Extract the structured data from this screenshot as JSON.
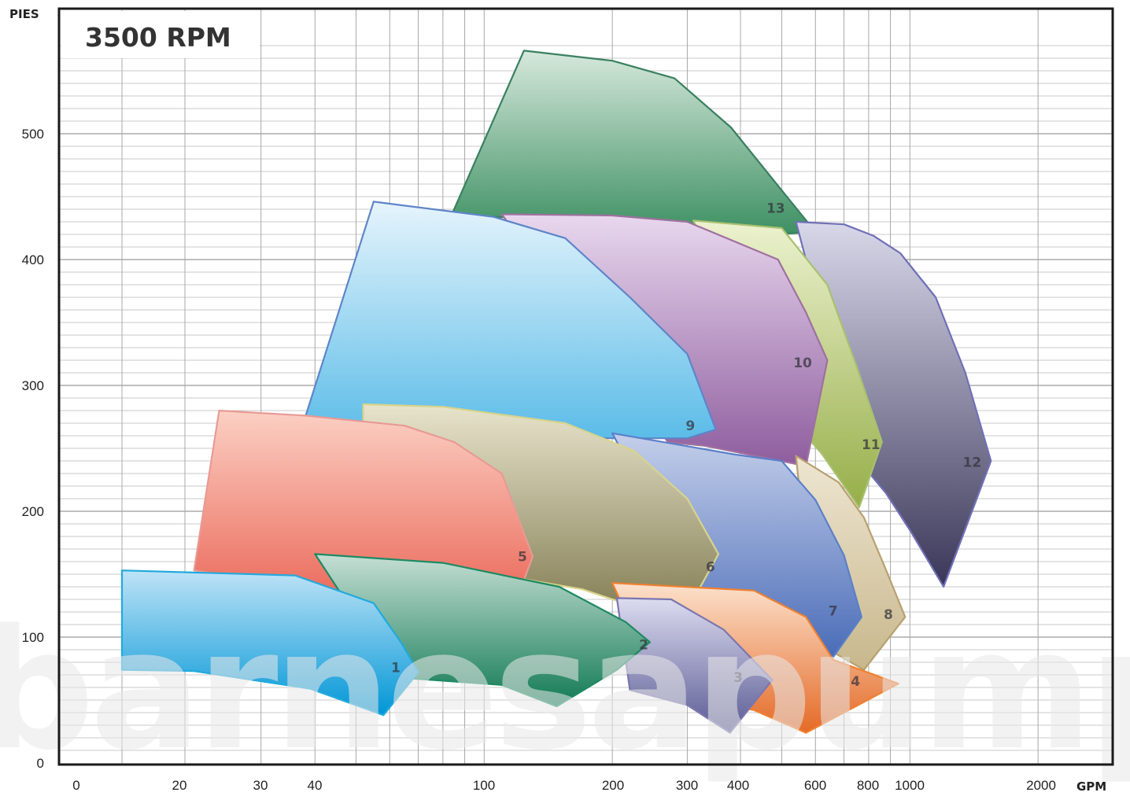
{
  "chart_data": {
    "type": "area",
    "title": "3500 RPM",
    "ylabel": "PIES",
    "xlabel": "GPM",
    "watermark": "barnesapumps",
    "ylim": [
      0,
      580
    ],
    "y_ticks": [
      0,
      100,
      200,
      300,
      400,
      500
    ],
    "x_tick_labels": [
      "0",
      "20",
      "30",
      "40",
      "100",
      "200",
      "300",
      "400",
      "600",
      "800",
      "1000",
      "2000"
    ],
    "grid": true,
    "series": [
      {
        "name": "1",
        "color": "#0096d6",
        "light": "#bfe3f7",
        "stroke": "#22aadd",
        "label_at": [
          62,
          76
        ],
        "outline": [
          [
            15,
            153
          ],
          [
            36,
            149
          ],
          [
            55,
            127
          ],
          [
            64,
            95
          ],
          [
            70,
            72
          ],
          [
            58,
            38
          ],
          [
            39,
            59
          ],
          [
            21,
            73
          ],
          [
            15,
            74
          ]
        ]
      },
      {
        "name": "2",
        "color": "#117a55",
        "light": "#c6dfd4",
        "stroke": "#1d8a63",
        "label_at": [
          237,
          94
        ],
        "outline": [
          [
            40,
            166
          ],
          [
            80,
            159
          ],
          [
            150,
            140
          ],
          [
            215,
            112
          ],
          [
            245,
            96
          ],
          [
            205,
            74
          ],
          [
            148,
            45
          ],
          [
            110,
            62
          ],
          [
            62,
            68
          ]
        ]
      },
      {
        "name": "3",
        "color": "#5a5a94",
        "light": "#dcdcf0",
        "stroke": "#7a76b0",
        "label_at": [
          395,
          68
        ],
        "outline": [
          [
            205,
            131
          ],
          [
            275,
            130
          ],
          [
            365,
            106
          ],
          [
            475,
            66
          ],
          [
            378,
            24
          ],
          [
            300,
            46
          ],
          [
            220,
            58
          ]
        ]
      },
      {
        "name": "4",
        "color": "#e46a27",
        "light": "#fce1cc",
        "stroke": "#f08030",
        "label_at": [
          745,
          65
        ],
        "outline": [
          [
            200,
            143
          ],
          [
            430,
            137
          ],
          [
            570,
            116
          ],
          [
            660,
            82
          ],
          [
            940,
            63
          ],
          [
            570,
            24
          ],
          [
            430,
            42
          ],
          [
            260,
            58
          ]
        ]
      },
      {
        "name": "5",
        "color": "#e8594a",
        "light": "#fbd0c3",
        "stroke": "#e89a95",
        "label_at": [
          123,
          164
        ],
        "outline": [
          [
            24,
            280
          ],
          [
            38,
            276
          ],
          [
            65,
            268
          ],
          [
            85,
            255
          ],
          [
            110,
            230
          ],
          [
            130,
            164
          ],
          [
            112,
            105
          ],
          [
            60,
            128
          ],
          [
            21,
            153
          ]
        ]
      },
      {
        "name": "6",
        "color": "#807a50",
        "light": "#e8e4cc",
        "stroke": "#d8d48a",
        "label_at": [
          340,
          156
        ],
        "outline": [
          [
            52,
            285
          ],
          [
            80,
            283
          ],
          [
            155,
            270
          ],
          [
            225,
            248
          ],
          [
            300,
            210
          ],
          [
            355,
            166
          ],
          [
            290,
            112
          ],
          [
            170,
            138
          ],
          [
            52,
            168
          ]
        ]
      },
      {
        "name": "7",
        "color": "#4a6cb8",
        "light": "#c4cfea",
        "stroke": "#5a80c8",
        "label_at": [
          660,
          121
        ],
        "outline": [
          [
            200,
            262
          ],
          [
            390,
            245
          ],
          [
            500,
            240
          ],
          [
            600,
            209
          ],
          [
            700,
            165
          ],
          [
            770,
            116
          ],
          [
            660,
            84
          ],
          [
            440,
            95
          ],
          [
            310,
            140
          ]
        ]
      },
      {
        "name": "8",
        "color": "#c8b78c",
        "light": "#eee6d2",
        "stroke": "#b8a070",
        "label_at": [
          890,
          118
        ],
        "outline": [
          [
            540,
            244
          ],
          [
            680,
            223
          ],
          [
            780,
            195
          ],
          [
            875,
            155
          ],
          [
            975,
            116
          ],
          [
            780,
            74
          ],
          [
            600,
            96
          ]
        ]
      },
      {
        "name": "9",
        "color": "#5bbce8",
        "light": "#e6f4fc",
        "stroke": "#5e85c8",
        "label_at": [
          305,
          268
        ],
        "outline": [
          [
            55,
            446
          ],
          [
            105,
            434
          ],
          [
            155,
            417
          ],
          [
            220,
            370
          ],
          [
            300,
            325
          ],
          [
            350,
            265
          ],
          [
            300,
            258
          ],
          [
            150,
            258
          ],
          [
            38,
            275
          ]
        ]
      },
      {
        "name": "10",
        "color": "#8e5c9e",
        "light": "#e8d8ee",
        "stroke": "#a070a0",
        "label_at": [
          560,
          318
        ],
        "outline": [
          [
            110,
            436
          ],
          [
            200,
            435
          ],
          [
            300,
            430
          ],
          [
            490,
            400
          ],
          [
            570,
            358
          ],
          [
            640,
            320
          ],
          [
            570,
            236
          ],
          [
            330,
            252
          ],
          [
            270,
            255
          ]
        ]
      },
      {
        "name": "11",
        "color": "#96ae48",
        "light": "#ecf2cf",
        "stroke": "#a8c070",
        "label_at": [
          810,
          253
        ],
        "outline": [
          [
            310,
            431
          ],
          [
            500,
            425
          ],
          [
            640,
            380
          ],
          [
            750,
            315
          ],
          [
            860,
            255
          ],
          [
            760,
            203
          ],
          [
            620,
            246
          ],
          [
            500,
            282
          ]
        ]
      },
      {
        "name": "12",
        "color": "#3a3658",
        "light": "#d8d8ea",
        "stroke": "#7070b8",
        "label_at": [
          1400,
          239
        ],
        "outline": [
          [
            540,
            430
          ],
          [
            700,
            428
          ],
          [
            820,
            419
          ],
          [
            950,
            405
          ],
          [
            1150,
            370
          ],
          [
            1350,
            310
          ],
          [
            1550,
            240
          ],
          [
            1200,
            140
          ],
          [
            1000,
            185
          ],
          [
            880,
            214
          ],
          [
            760,
            240
          ]
        ]
      },
      {
        "name": "13",
        "color": "#3d9062",
        "light": "#d6e8dc",
        "stroke": "#3a8060",
        "label_at": [
          484,
          441
        ],
        "outline": [
          [
            124,
            566
          ],
          [
            200,
            558
          ],
          [
            280,
            544
          ],
          [
            380,
            505
          ],
          [
            500,
            455
          ],
          [
            600,
            422
          ],
          [
            480,
            420
          ],
          [
            300,
            425
          ],
          [
            84,
            436
          ]
        ]
      }
    ]
  }
}
